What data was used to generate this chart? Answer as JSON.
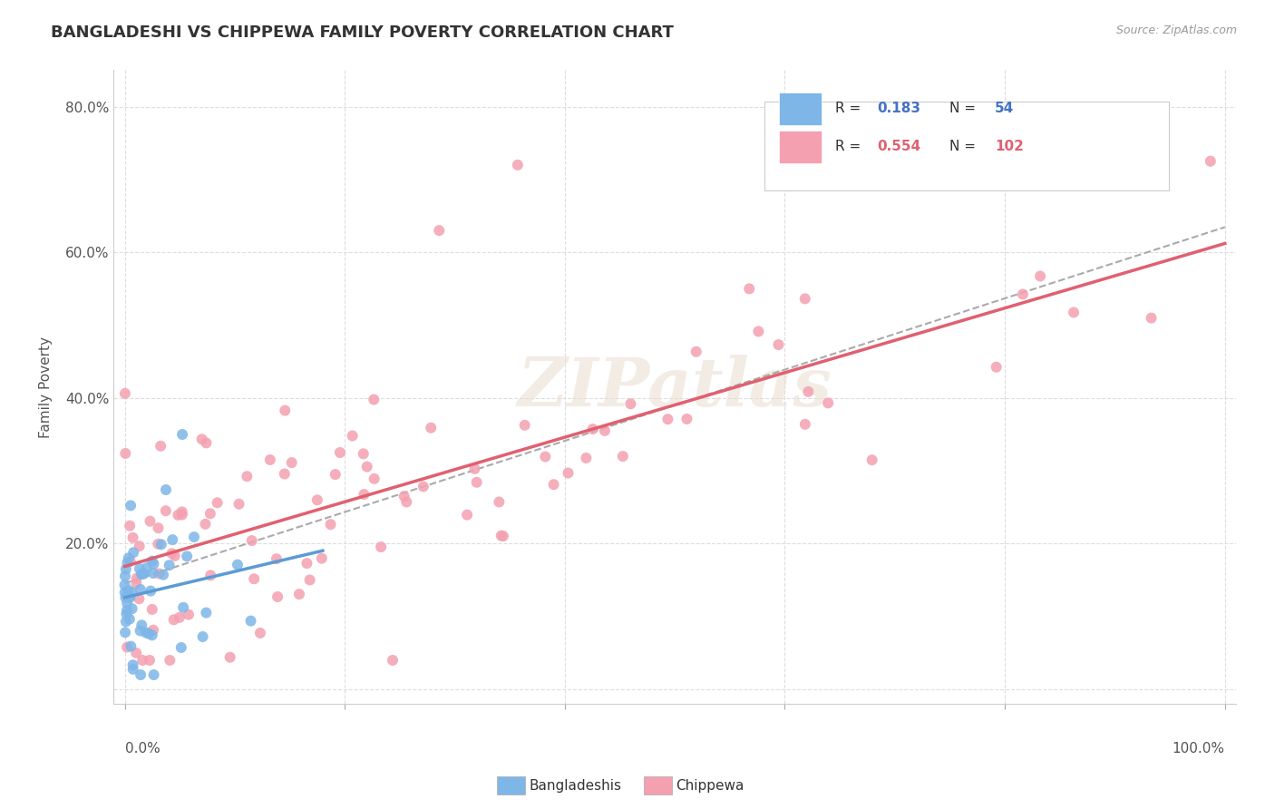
{
  "title": "BANGLADESHI VS CHIPPEWA FAMILY POVERTY CORRELATION CHART",
  "source": "Source: ZipAtlas.com",
  "ylabel": "Family Poverty",
  "bangladeshi_R": 0.183,
  "bangladeshi_N": 54,
  "chippewa_R": 0.554,
  "chippewa_N": 102,
  "blue_color": "#7eb6e8",
  "blue_dark": "#5b9bd5",
  "pink_color": "#f4a0b0",
  "pink_dark": "#e06070",
  "blue_text_color": "#4472c4",
  "pink_text_color": "#e06070",
  "watermark": "ZIPatlas"
}
